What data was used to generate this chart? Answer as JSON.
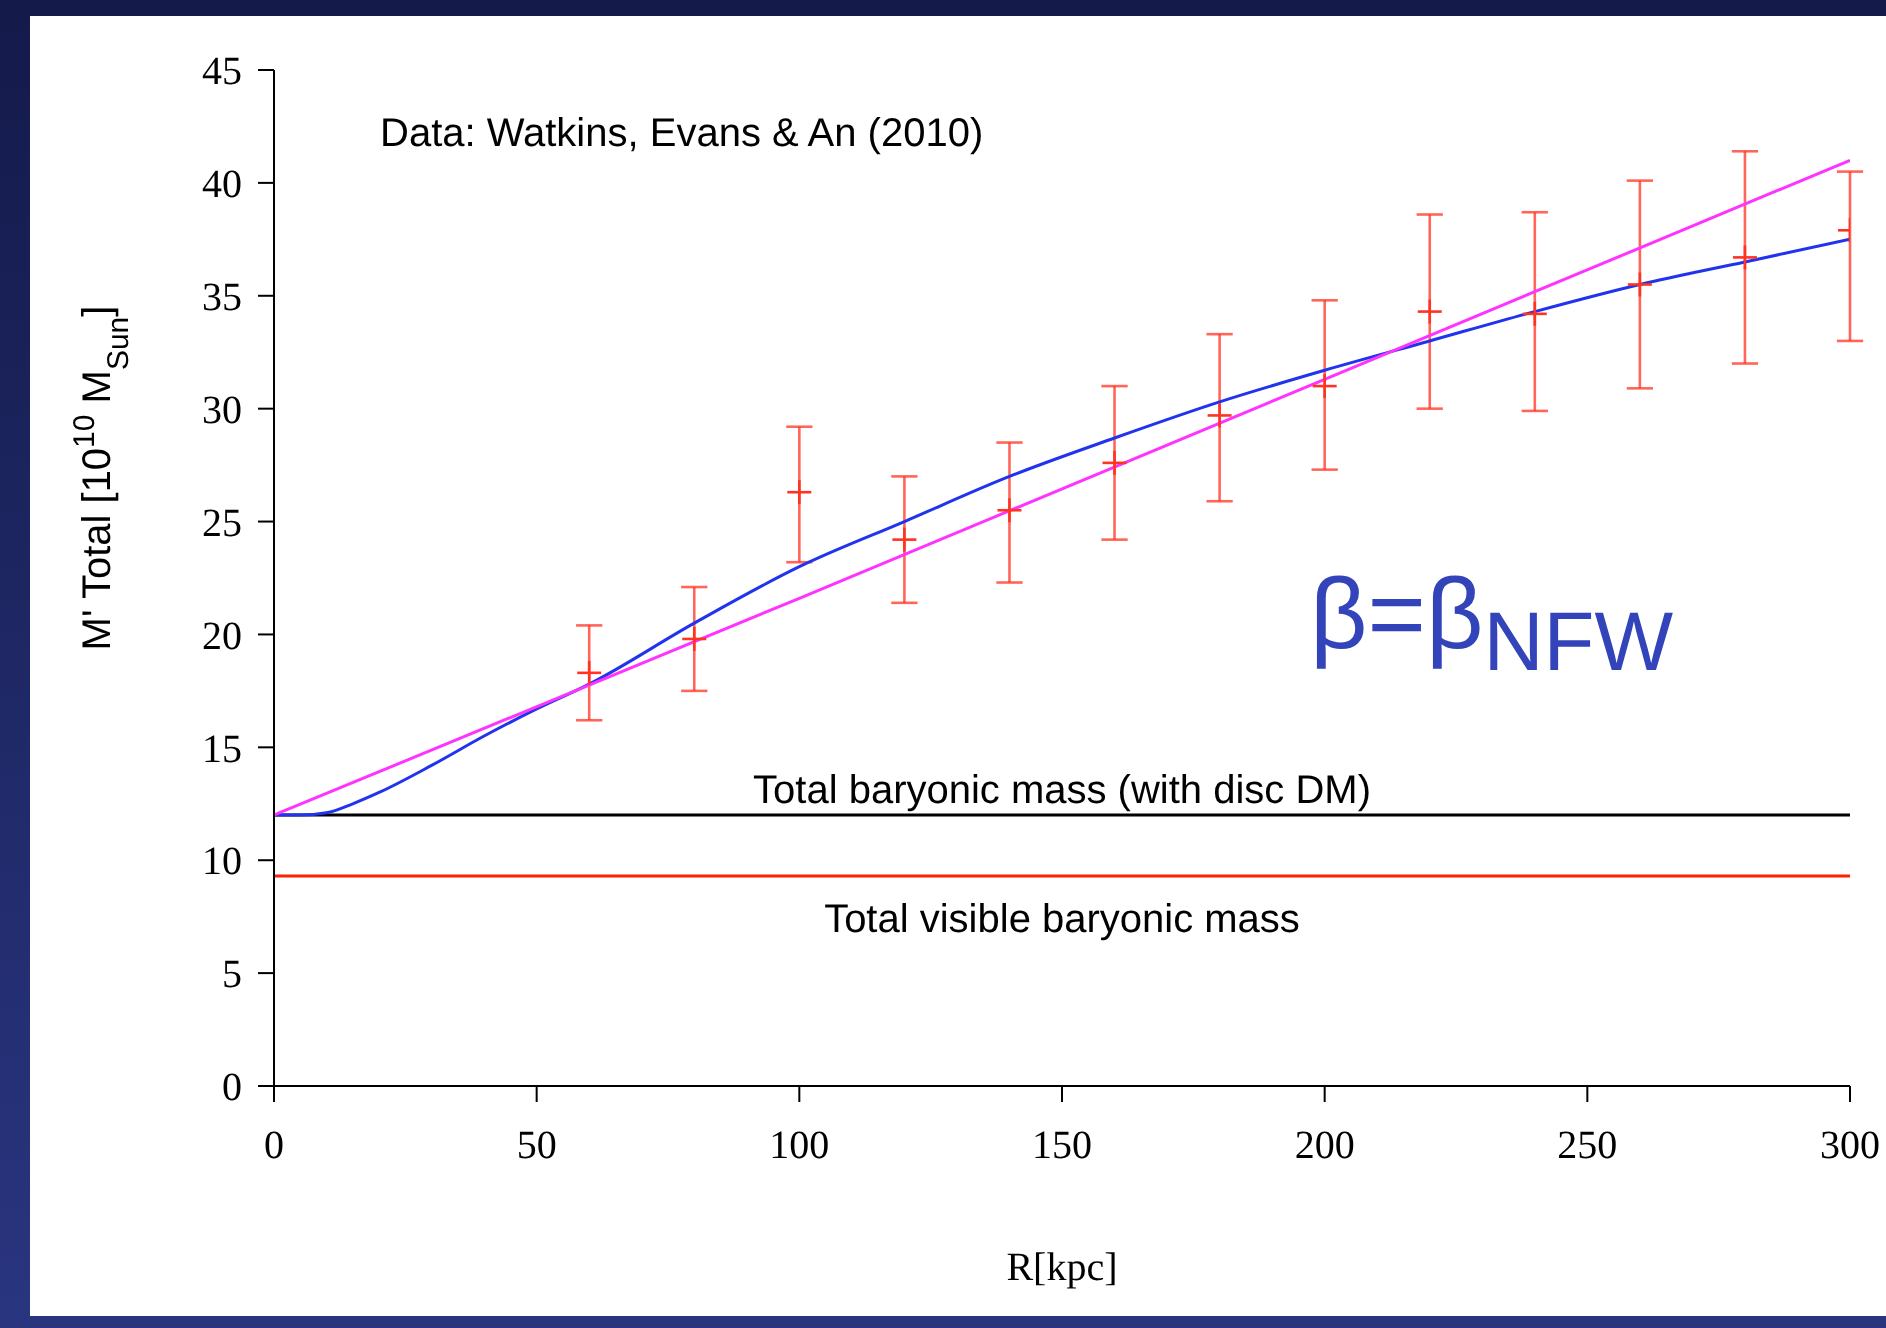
{
  "chart_data": {
    "type": "line",
    "xlabel": "R[kpc]",
    "ylabel": "M' Total  [10$^{10}$ M$_{Sun}$]",
    "xlim": [
      0,
      300
    ],
    "xticks": [
      0,
      50,
      100,
      150,
      200,
      250,
      300
    ],
    "ylim": [
      0,
      45
    ],
    "yticks": [
      0,
      5,
      10,
      15,
      20,
      25,
      30,
      35,
      40,
      45
    ],
    "series": [
      {
        "type": "scatter",
        "color": "#ff3322",
        "marker": "cross",
        "x": [
          60,
          80,
          100,
          120,
          140,
          160,
          180,
          200,
          220,
          240,
          260,
          280,
          300
        ],
        "values": [
          18.3,
          19.8,
          26.3,
          24.2,
          25.5,
          27.6,
          29.7,
          31.0,
          34.3,
          34.2,
          35.5,
          36.7,
          37.9
        ],
        "errors": [
          [
            16.2,
            20.4
          ],
          [
            17.5,
            22.1
          ],
          [
            23.2,
            29.2
          ],
          [
            21.4,
            27.0
          ],
          [
            22.3,
            28.5
          ],
          [
            24.2,
            31.0
          ],
          [
            25.9,
            33.3
          ],
          [
            27.3,
            34.8
          ],
          [
            30.0,
            38.6
          ],
          [
            29.9,
            38.7
          ],
          [
            30.9,
            40.1
          ],
          [
            32.0,
            41.4
          ],
          [
            33.0,
            40.5
          ]
        ]
      },
      {
        "color": "#2233ee",
        "marker": "none",
        "x": [
          0,
          5,
          10,
          15,
          20,
          30,
          40,
          50,
          60,
          80,
          100,
          120,
          140,
          160,
          180,
          200,
          220,
          240,
          260,
          280,
          300
        ],
        "values": [
          12,
          12,
          12.1,
          12.5,
          13,
          14.2,
          15.5,
          16.7,
          17.8,
          20.5,
          23,
          25,
          27,
          28.7,
          30.3,
          31.7,
          33,
          34.3,
          35.5,
          36.5,
          37.5
        ]
      },
      {
        "color": "#ff33ff",
        "marker": "none",
        "x": [
          0,
          100,
          200,
          300
        ],
        "values": [
          12,
          21.6,
          31.3,
          41
        ]
      }
    ],
    "ref_lines": [
      {
        "axis": "y",
        "value": 12,
        "label": "Total baryonic mass (with disc DM)",
        "color": "#000000"
      },
      {
        "axis": "y",
        "value": 9.3,
        "label": "Total visible baryonic mass",
        "color": "#ff2200"
      }
    ],
    "annotations": [
      "Data: Watkins, Evans & An (2010)",
      "β=β$_{NFW}$"
    ]
  }
}
